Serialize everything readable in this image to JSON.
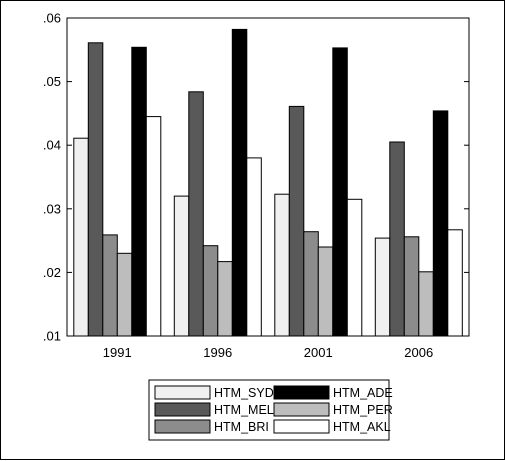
{
  "chart_data": {
    "type": "bar",
    "categories": [
      "1991",
      "1996",
      "2001",
      "2006"
    ],
    "series": [
      {
        "name": "HTM_SYD",
        "color": "#f0f0f0",
        "values": [
          0.0411,
          0.032,
          0.0323,
          0.0254
        ]
      },
      {
        "name": "HTM_MEL",
        "color": "#595959",
        "values": [
          0.0561,
          0.0484,
          0.0461,
          0.0405
        ]
      },
      {
        "name": "HTM_BRI",
        "color": "#8c8c8c",
        "values": [
          0.0259,
          0.0242,
          0.0264,
          0.0256
        ]
      },
      {
        "name": "HTM_PER",
        "color": "#bdbdbd",
        "values": [
          0.023,
          0.0217,
          0.024,
          0.0201
        ]
      },
      {
        "name": "HTM_ADE",
        "color": "#000000",
        "values": [
          0.0554,
          0.0582,
          0.0553,
          0.0454
        ]
      },
      {
        "name": "HTM_AKL",
        "color": "#ffffff",
        "values": [
          0.0445,
          0.038,
          0.0315,
          0.0267
        ]
      }
    ],
    "ylim": [
      0.01,
      0.06
    ],
    "yticks": [
      0.01,
      0.02,
      0.03,
      0.04,
      0.05,
      0.06
    ],
    "ytick_labels": [
      ".01",
      ".02",
      ".03",
      ".04",
      ".05",
      ".06"
    ],
    "legend_order": [
      "HTM_SYD",
      "HTM_ADE",
      "HTM_MEL",
      "HTM_PER",
      "HTM_BRI",
      "HTM_AKL"
    ],
    "legend_position": "bottom",
    "grid": false
  }
}
